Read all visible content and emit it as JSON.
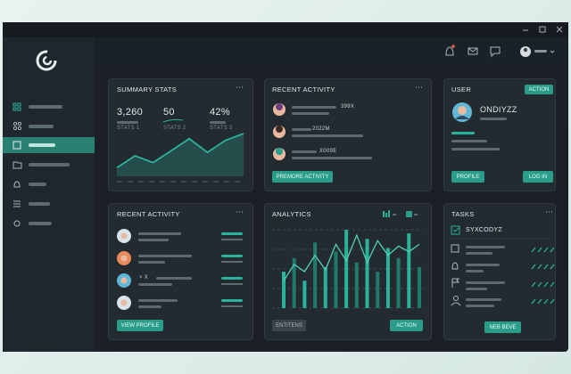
{
  "summary": {
    "title": "SUMMARY STATS",
    "stats": [
      {
        "value": "3,260",
        "label": "STATS 1"
      },
      {
        "value": "50",
        "label": "STATS 2"
      },
      {
        "value": "42%",
        "label": "STATS 3"
      }
    ],
    "chart": {
      "values": [
        10,
        24,
        16,
        30,
        44,
        28,
        42,
        50
      ]
    }
  },
  "activity_top": {
    "title": "RECENT ACTIVITY",
    "items": [
      "399X",
      "2022M",
      "X009E"
    ],
    "button": "PREMORE ACTIVITY"
  },
  "user": {
    "title": "USER",
    "action": "ACTION",
    "name": "ONDIYZZ",
    "buttons": [
      "PROFILE",
      "LOG IN"
    ]
  },
  "activity_bottom": {
    "title": "RECENT ACTIVITY",
    "note": "× X",
    "button": "VIEW PROFILE"
  },
  "analytics": {
    "title": "ANALYTICS",
    "bars": [
      40,
      55,
      30,
      72,
      45,
      62,
      86,
      50,
      76,
      40,
      66,
      55,
      82,
      45
    ],
    "line": [
      30,
      48,
      40,
      58,
      42,
      70,
      52,
      80,
      50,
      74,
      58,
      68,
      62,
      70
    ],
    "buttons": [
      "ENTITENS",
      "ACTION"
    ]
  },
  "tasks": {
    "title": "TASKS",
    "first": "SYXCODYZ",
    "button": "NEB BEVE"
  }
}
